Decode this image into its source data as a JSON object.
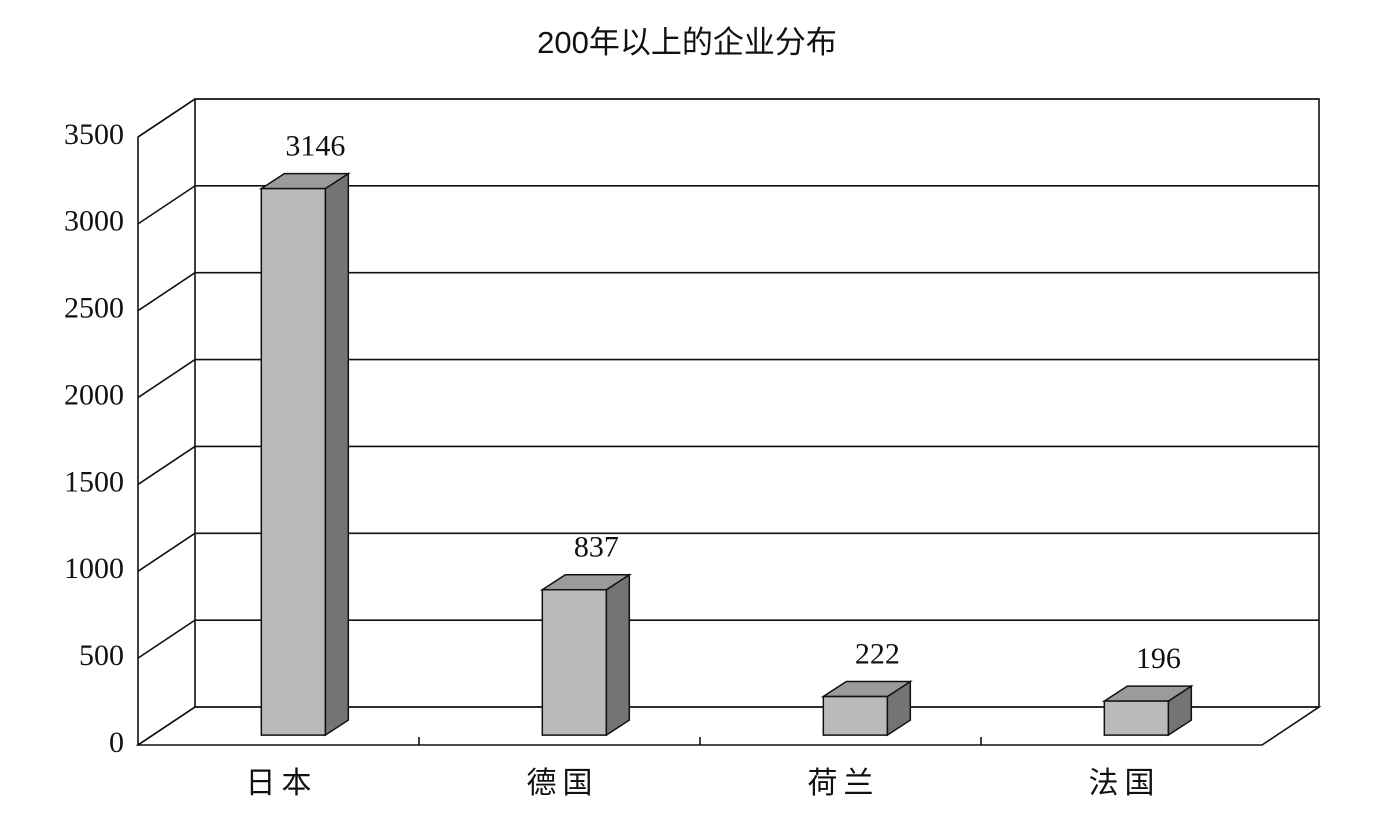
{
  "chart_data": {
    "type": "bar3d",
    "title": "200年以上的企业分布",
    "categories": [
      "日本",
      "德国",
      "荷兰",
      "法国"
    ],
    "values": [
      3146,
      837,
      222,
      196
    ],
    "color": "#bbb9bb",
    "side_color": "#747474",
    "top_color": "#9c9a9c",
    "ylim": [
      0,
      3500
    ],
    "yticks": [
      0,
      500,
      1000,
      1500,
      2000,
      2500,
      3000,
      3500
    ],
    "grid": true
  }
}
